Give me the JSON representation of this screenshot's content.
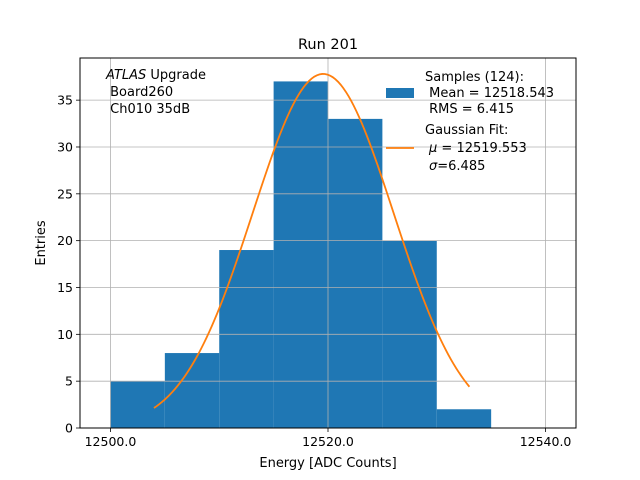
{
  "chart_data": {
    "type": "bar",
    "title": "Run 201",
    "xlabel": "Energy [ADC Counts]",
    "ylabel": "Entries",
    "xlim": [
      12497.2,
      12542.8
    ],
    "ylim": [
      0,
      39.5
    ],
    "xticks": [
      {
        "value": 12500,
        "label": "12500.0"
      },
      {
        "value": 12520,
        "label": "12520.0"
      },
      {
        "value": 12540,
        "label": "12540.0"
      }
    ],
    "yticks": [
      {
        "value": 0,
        "label": "0"
      },
      {
        "value": 5,
        "label": "5"
      },
      {
        "value": 10,
        "label": "10"
      },
      {
        "value": 15,
        "label": "15"
      },
      {
        "value": 20,
        "label": "20"
      },
      {
        "value": 25,
        "label": "25"
      },
      {
        "value": 30,
        "label": "30"
      },
      {
        "value": 35,
        "label": "35"
      }
    ],
    "grid": true,
    "bins": [
      {
        "from": 12500,
        "to": 12505,
        "count": 5
      },
      {
        "from": 12505,
        "to": 12510,
        "count": 8
      },
      {
        "from": 12510,
        "to": 12515,
        "count": 19
      },
      {
        "from": 12515,
        "to": 12520,
        "count": 37
      },
      {
        "from": 12520,
        "to": 12525,
        "count": 33
      },
      {
        "from": 12525,
        "to": 12530,
        "count": 20
      },
      {
        "from": 12530,
        "to": 12535,
        "count": 2
      }
    ],
    "fit": {
      "mu": 12519.553,
      "sigma": 6.485,
      "amplitude": 37.8,
      "x_range": [
        12504,
        12533
      ]
    },
    "annotation": {
      "italic": "ATLAS",
      "rest": " Upgrade",
      "line2": " Board260",
      "line3": " Ch010 35dB"
    },
    "legend": {
      "position": "top-right",
      "hist": {
        "line1": "Samples (124):",
        "line2": " Mean = 12518.543",
        "line3": " RMS = 6.415"
      },
      "fit": {
        "line1": "Gaussian Fit:",
        "mu_label": "μ",
        "mu_rest": " = 12519.553",
        "sigma_label": "σ",
        "sigma_rest": "=6.485"
      }
    },
    "colors": {
      "bars": "#1f77b4",
      "fit": "#ff7f0e",
      "grid": "#b0b0b0"
    }
  }
}
